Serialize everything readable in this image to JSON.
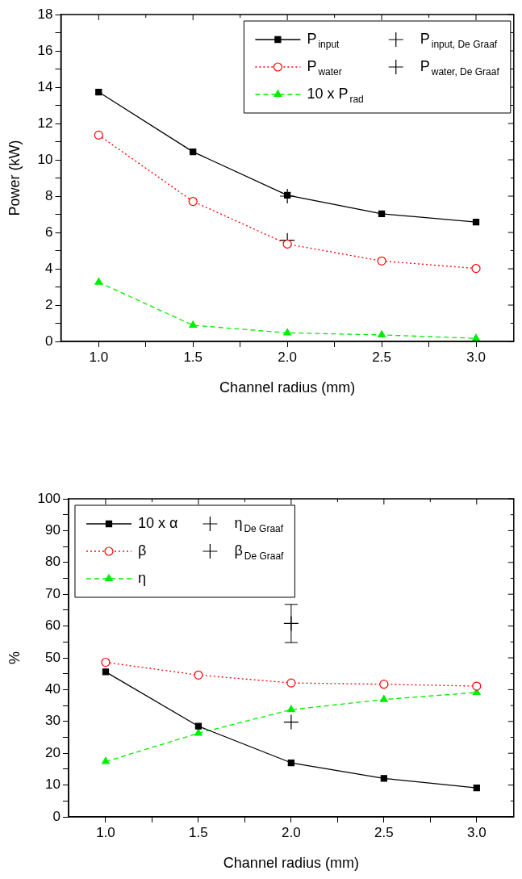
{
  "chart_data": [
    {
      "type": "line",
      "xlabel": "Channel radius (mm)",
      "ylabel": "Power (kW)",
      "x": [
        1.0,
        1.5,
        2.0,
        2.5,
        3.0
      ],
      "xlim": [
        0.8,
        3.2
      ],
      "xticks": [
        {
          "value": 1.0,
          "label": "1.0"
        },
        {
          "value": 1.25,
          "label": null
        },
        {
          "value": 1.5,
          "label": "1.5"
        },
        {
          "value": 1.75,
          "label": null
        },
        {
          "value": 2.0,
          "label": "2.0"
        },
        {
          "value": 2.25,
          "label": null
        },
        {
          "value": 2.5,
          "label": "2.5"
        },
        {
          "value": 2.75,
          "label": null
        },
        {
          "value": 3.0,
          "label": "3.0"
        }
      ],
      "ylim": [
        0,
        18
      ],
      "yticks": [
        0,
        {
          "value": 1,
          "label": null
        },
        2,
        {
          "value": 3,
          "label": null
        },
        4,
        {
          "value": 5,
          "label": null
        },
        6,
        {
          "value": 7,
          "label": null
        },
        8,
        {
          "value": 9,
          "label": null
        },
        10,
        {
          "value": 11,
          "label": null
        },
        12,
        {
          "value": 13,
          "label": null
        },
        14,
        {
          "value": 15,
          "label": null
        },
        16,
        {
          "value": 17,
          "label": null
        },
        18
      ],
      "grid": false,
      "legend": "top right",
      "series": [
        {
          "name": "P$_{input}$",
          "color": "#000000",
          "marker": "square",
          "line_style": "solid",
          "values": [
            13.73,
            10.44,
            8.05,
            7.03,
            6.57
          ]
        },
        {
          "name": "P$_{water}$",
          "color": "#ff0000",
          "marker": "circle",
          "line_style": "dotted",
          "values": [
            11.36,
            7.71,
            5.36,
            4.43,
            4.02
          ]
        },
        {
          "name": "10 x P$_{rad}$",
          "color": "#00ee00",
          "marker": "triangle",
          "line_style": "dashed",
          "values": [
            3.26,
            0.89,
            0.47,
            0.36,
            0.17
          ]
        },
        {
          "name": "P$_{input, De Graaf}$",
          "type": "scatter",
          "color": "#000000",
          "marker": "cross",
          "values": [
            null,
            null,
            8.0,
            null,
            null
          ]
        },
        {
          "name": "P$_{water, De Graaf}$",
          "type": "scatter",
          "color": "#000000",
          "marker": "cross",
          "values": [
            null,
            null,
            5.57,
            null,
            null
          ]
        }
      ]
    },
    {
      "type": "line",
      "xlabel": "Channel radius (mm)",
      "ylabel": "%",
      "x": [
        1.0,
        1.5,
        2.0,
        2.5,
        3.0
      ],
      "xlim": [
        0.8,
        3.2
      ],
      "xticks": [
        {
          "value": 1.0,
          "label": "1.0"
        },
        {
          "value": 1.25,
          "label": null
        },
        {
          "value": 1.5,
          "label": "1.5"
        },
        {
          "value": 1.75,
          "label": null
        },
        {
          "value": 2.0,
          "label": "2.0"
        },
        {
          "value": 2.25,
          "label": null
        },
        {
          "value": 2.5,
          "label": "2.5"
        },
        {
          "value": 2.75,
          "label": null
        },
        {
          "value": 3.0,
          "label": "3.0"
        }
      ],
      "ylim": [
        0,
        100
      ],
      "yticks": [
        0,
        {
          "value": 5,
          "label": null
        },
        10,
        {
          "value": 15,
          "label": null
        },
        20,
        {
          "value": 25,
          "label": null
        },
        30,
        {
          "value": 35,
          "label": null
        },
        40,
        {
          "value": 45,
          "label": null
        },
        50,
        {
          "value": 55,
          "label": null
        },
        60,
        {
          "value": 65,
          "label": null
        },
        70,
        {
          "value": 75,
          "label": null
        },
        80,
        {
          "value": 85,
          "label": null
        },
        90,
        {
          "value": 95,
          "label": null
        },
        100
      ],
      "grid": false,
      "legend": "top left",
      "series": [
        {
          "name": "10 x α",
          "color": "#000000",
          "marker": "square",
          "line_style": "solid",
          "values": [
            45.6,
            28.5,
            17.0,
            12.1,
            9.1
          ]
        },
        {
          "name": "β",
          "color": "#ff0000",
          "marker": "circle",
          "line_style": "dotted",
          "values": [
            48.6,
            44.6,
            42.1,
            41.7,
            41.1
          ]
        },
        {
          "name": "η",
          "color": "#00ee00",
          "marker": "triangle",
          "line_style": "dashed",
          "values": [
            17.4,
            26.3,
            33.7,
            36.9,
            39.1
          ]
        },
        {
          "name": "η$_{De Graaf}$",
          "type": "scatter",
          "color": "#000000",
          "marker": "cross",
          "values": [
            null,
            null,
            29.8,
            null,
            null
          ]
        },
        {
          "name": "β$_{De Graaf}$",
          "type": "scatter",
          "color": "#000000",
          "marker": "cross",
          "values": [
            null,
            null,
            60.8,
            null,
            null
          ],
          "errors": [
            null,
            null,
            6,
            null,
            null
          ]
        }
      ]
    }
  ]
}
